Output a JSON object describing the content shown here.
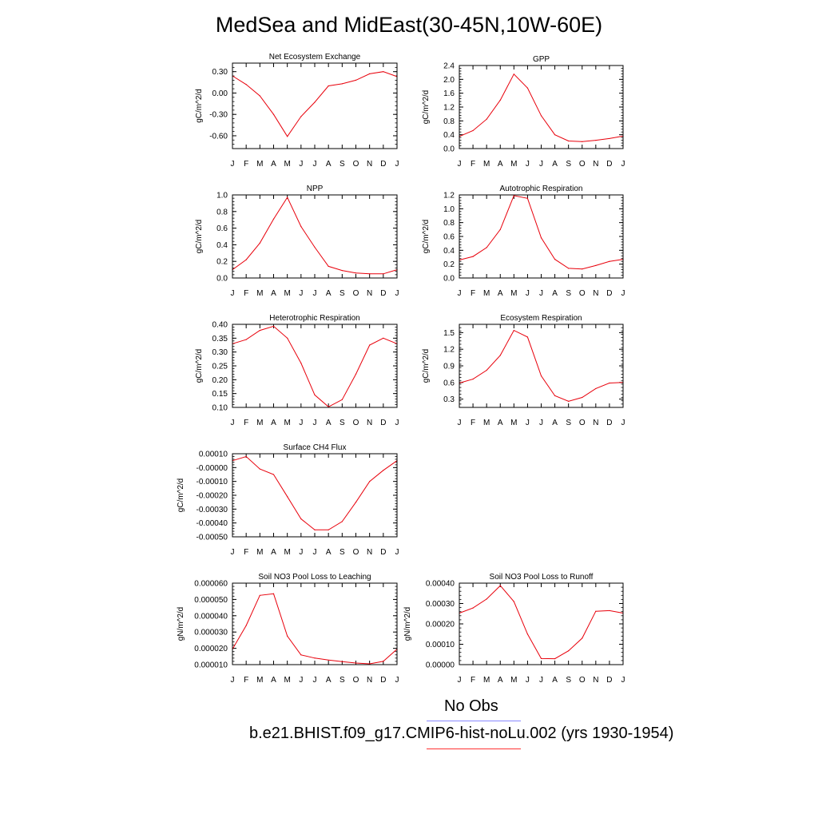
{
  "page": {
    "title": "MedSea and MidEast(30-45N,10W-60E)"
  },
  "legend": {
    "items": [
      {
        "label": "No Obs",
        "color": "#8888ff"
      },
      {
        "label": "b.e21.BHIST.f09_g17.CMIP6-hist-noLu.002 (yrs 1930-1954)",
        "color": "#ff3333"
      }
    ]
  },
  "colors": {
    "series": "#e8000b",
    "axis": "#000000"
  },
  "chart_data": [
    {
      "type": "line",
      "title": "Net Ecosystem Exchange",
      "ylabel": "gC/m^2/d",
      "categories": [
        "J",
        "F",
        "M",
        "A",
        "M",
        "J",
        "J",
        "A",
        "S",
        "O",
        "N",
        "D",
        "J"
      ],
      "ylim": [
        -0.78,
        0.42
      ],
      "yticks": [
        -0.6,
        -0.3,
        0.0,
        0.3
      ],
      "ytick_labels": [
        "-0.60",
        "-0.30",
        "0.00",
        "0.30"
      ],
      "series": [
        {
          "values": [
            0.24,
            0.12,
            -0.04,
            -0.3,
            -0.61,
            -0.33,
            -0.13,
            0.1,
            0.13,
            0.18,
            0.27,
            0.3,
            0.23
          ]
        }
      ]
    },
    {
      "type": "line",
      "title": "GPP",
      "ylabel": "gC/m^2/d",
      "categories": [
        "J",
        "F",
        "M",
        "A",
        "M",
        "J",
        "J",
        "A",
        "S",
        "O",
        "N",
        "D",
        "J"
      ],
      "ylim": [
        0.0,
        2.4
      ],
      "yticks": [
        0.0,
        0.4,
        0.8,
        1.2,
        1.6,
        2.0,
        2.4
      ],
      "ytick_labels": [
        "0.0",
        "0.4",
        "0.8",
        "1.2",
        "1.6",
        "2.0",
        "2.4"
      ],
      "series": [
        {
          "values": [
            0.35,
            0.52,
            0.85,
            1.4,
            2.15,
            1.75,
            0.95,
            0.4,
            0.22,
            0.2,
            0.24,
            0.29,
            0.36
          ]
        }
      ]
    },
    {
      "type": "line",
      "title": "NPP",
      "ylabel": "gC/m^2/d",
      "categories": [
        "J",
        "F",
        "M",
        "A",
        "M",
        "J",
        "J",
        "A",
        "S",
        "O",
        "N",
        "D",
        "J"
      ],
      "ylim": [
        0.0,
        1.0
      ],
      "yticks": [
        0.0,
        0.2,
        0.4,
        0.6,
        0.8,
        1.0
      ],
      "ytick_labels": [
        "0.0",
        "0.2",
        "0.4",
        "0.6",
        "0.8",
        "1.0"
      ],
      "series": [
        {
          "values": [
            0.1,
            0.22,
            0.42,
            0.71,
            0.97,
            0.62,
            0.37,
            0.14,
            0.09,
            0.06,
            0.05,
            0.05,
            0.1
          ]
        }
      ]
    },
    {
      "type": "line",
      "title": "Autotrophic Respiration",
      "ylabel": "gC/m^2/d",
      "categories": [
        "J",
        "F",
        "M",
        "A",
        "M",
        "J",
        "J",
        "A",
        "S",
        "O",
        "N",
        "D",
        "J"
      ],
      "ylim": [
        0.0,
        1.2
      ],
      "yticks": [
        0.0,
        0.2,
        0.4,
        0.6,
        0.8,
        1.0,
        1.2
      ],
      "ytick_labels": [
        "0.0",
        "0.2",
        "0.4",
        "0.6",
        "0.8",
        "1.0",
        "1.2"
      ],
      "series": [
        {
          "values": [
            0.26,
            0.31,
            0.44,
            0.7,
            1.19,
            1.15,
            0.58,
            0.27,
            0.14,
            0.13,
            0.18,
            0.24,
            0.27
          ]
        }
      ]
    },
    {
      "type": "line",
      "title": "Heterotrophic Respiration",
      "ylabel": "gC/m^2/d",
      "categories": [
        "J",
        "F",
        "M",
        "A",
        "M",
        "J",
        "J",
        "A",
        "S",
        "O",
        "N",
        "D",
        "J"
      ],
      "ylim": [
        0.1,
        0.4
      ],
      "yticks": [
        0.1,
        0.15,
        0.2,
        0.25,
        0.3,
        0.35,
        0.4
      ],
      "ytick_labels": [
        "0.10",
        "0.15",
        "0.20",
        "0.25",
        "0.30",
        "0.35",
        "0.40"
      ],
      "series": [
        {
          "values": [
            0.33,
            0.345,
            0.378,
            0.393,
            0.35,
            0.26,
            0.145,
            0.102,
            0.128,
            0.22,
            0.325,
            0.35,
            0.33
          ]
        }
      ]
    },
    {
      "type": "line",
      "title": "Ecosystem Respiration",
      "ylabel": "gC/m^2/d",
      "categories": [
        "J",
        "F",
        "M",
        "A",
        "M",
        "J",
        "J",
        "A",
        "S",
        "O",
        "N",
        "D",
        "J"
      ],
      "ylim": [
        0.15,
        1.65
      ],
      "yticks": [
        0.3,
        0.6,
        0.9,
        1.2,
        1.5
      ],
      "ytick_labels": [
        "0.3",
        "0.6",
        "0.9",
        "1.2",
        "1.5"
      ],
      "series": [
        {
          "values": [
            0.59,
            0.66,
            0.82,
            1.09,
            1.54,
            1.42,
            0.72,
            0.36,
            0.26,
            0.33,
            0.49,
            0.59,
            0.6
          ]
        }
      ]
    },
    {
      "type": "line",
      "title": "Surface CH4 Flux",
      "ylabel": "gC/m^2/d",
      "categories": [
        "J",
        "F",
        "M",
        "A",
        "M",
        "J",
        "J",
        "A",
        "S",
        "O",
        "N",
        "D",
        "J"
      ],
      "ylim": [
        -0.0005,
        0.0001
      ],
      "yticks": [
        -0.0005,
        -0.0004,
        -0.0003,
        -0.0002,
        -0.0001,
        0.0,
        0.0001
      ],
      "ytick_labels": [
        "-0.00050",
        "-0.00040",
        "-0.00030",
        "-0.00020",
        "-0.00010",
        "-0.00000",
        "0.00010"
      ],
      "series": [
        {
          "values": [
            5e-05,
            8e-05,
            -1e-05,
            -5e-05,
            -0.00021,
            -0.00037,
            -0.00045,
            -0.00045,
            -0.00039,
            -0.00025,
            -0.0001,
            -2e-05,
            5e-05
          ]
        }
      ]
    },
    {
      "type": "line",
      "title": "Soil NO3 Pool Loss to Leaching",
      "ylabel": "gN/m^2/d",
      "categories": [
        "J",
        "F",
        "M",
        "A",
        "M",
        "J",
        "J",
        "A",
        "S",
        "O",
        "N",
        "D",
        "J"
      ],
      "ylim": [
        1e-05,
        6e-05
      ],
      "yticks": [
        1e-05,
        2e-05,
        3e-05,
        4e-05,
        5e-05,
        6e-05
      ],
      "ytick_labels": [
        "0.000010",
        "0.000020",
        "0.000030",
        "0.000040",
        "0.000050",
        "0.000060"
      ],
      "series": [
        {
          "values": [
            1.95e-05,
            3.4e-05,
            5.25e-05,
            5.35e-05,
            2.75e-05,
            1.6e-05,
            1.4e-05,
            1.28e-05,
            1.18e-05,
            1.1e-05,
            1.05e-05,
            1.2e-05,
            1.95e-05
          ]
        }
      ]
    },
    {
      "type": "line",
      "title": "Soil NO3 Pool Loss to Runoff",
      "ylabel": "gN/m^2/d",
      "categories": [
        "J",
        "F",
        "M",
        "A",
        "M",
        "J",
        "J",
        "A",
        "S",
        "O",
        "N",
        "D",
        "J"
      ],
      "ylim": [
        0.0,
        0.0004
      ],
      "yticks": [
        0.0,
        0.0001,
        0.0002,
        0.0003,
        0.0004
      ],
      "ytick_labels": [
        "0.00000",
        "0.00010",
        "0.00020",
        "0.00030",
        "0.00040"
      ],
      "series": [
        {
          "values": [
            0.000253,
            0.000278,
            0.000322,
            0.000388,
            0.00031,
            0.00015,
            3e-05,
            2.9e-05,
            6.8e-05,
            0.00013,
            0.000262,
            0.000265,
            0.000253
          ]
        }
      ]
    }
  ]
}
